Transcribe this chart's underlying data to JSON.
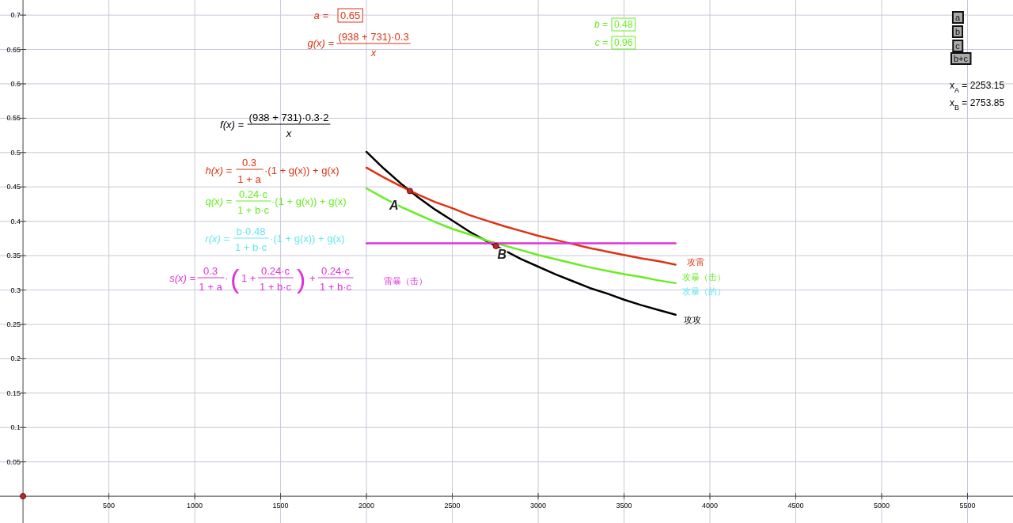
{
  "chart_data": {
    "type": "line",
    "xlim": [
      -134,
      5765
    ],
    "ylim": [
      -0.039,
      0.722
    ],
    "xticks": [
      500,
      1000,
      1500,
      2000,
      2500,
      3000,
      3500,
      4000,
      4500,
      5000,
      5500
    ],
    "yticks": [
      0.05,
      0.1,
      0.15,
      0.2,
      0.25,
      0.3,
      0.35,
      0.4,
      0.45,
      0.5,
      0.55,
      0.6,
      0.65,
      0.7
    ],
    "grid": true,
    "series": [
      {
        "name": "攻攻",
        "color": "#000000",
        "x": [
          2000,
          2100,
          2200,
          2300,
          2400,
          2500,
          2600,
          2700,
          2800,
          2900,
          3000,
          3100,
          3200,
          3300,
          3400,
          3500,
          3600,
          3700,
          3800
        ],
        "values": [
          0.501,
          0.477,
          0.455,
          0.435,
          0.417,
          0.401,
          0.385,
          0.371,
          0.358,
          0.345,
          0.334,
          0.323,
          0.313,
          0.303,
          0.295,
          0.286,
          0.278,
          0.271,
          0.264
        ]
      },
      {
        "name": "攻雷",
        "color": "#dd3311",
        "x": [
          2000,
          2100,
          2200,
          2300,
          2400,
          2500,
          2600,
          2700,
          2800,
          2900,
          3000,
          3100,
          3200,
          3300,
          3400,
          3500,
          3600,
          3700,
          3800
        ],
        "values": [
          0.478,
          0.464,
          0.451,
          0.439,
          0.428,
          0.419,
          0.409,
          0.401,
          0.393,
          0.386,
          0.379,
          0.373,
          0.367,
          0.361,
          0.356,
          0.351,
          0.346,
          0.342,
          0.337
        ]
      },
      {
        "name": "攻暴（击）",
        "color": "#66ee22",
        "x": [
          2000,
          2100,
          2200,
          2300,
          2400,
          2500,
          2600,
          2700,
          2800,
          2900,
          3000,
          3100,
          3200,
          3300,
          3400,
          3500,
          3600,
          3700,
          3800
        ],
        "values": [
          0.448,
          0.434,
          0.421,
          0.41,
          0.399,
          0.389,
          0.381,
          0.372,
          0.365,
          0.358,
          0.351,
          0.345,
          0.339,
          0.333,
          0.328,
          0.323,
          0.319,
          0.314,
          0.31
        ]
      },
      {
        "name": "攻暴（的）",
        "color": "#66e8f0"
      },
      {
        "name": "雷暴（击）",
        "color": "#dd33dd",
        "x": [
          2000,
          3800
        ],
        "values": [
          0.368,
          0.368
        ]
      },
      {
        "type": "scatter",
        "color": "#cc2222",
        "x": [
          0,
          2253.15,
          2753.85
        ],
        "values": [
          0,
          0.444,
          0.364
        ]
      }
    ],
    "annotations": [
      "a =",
      "0.65",
      "g(x) =",
      "(938 + 731)·0.3",
      "x",
      "b =",
      "0.48",
      "c =",
      "0.96",
      "a",
      "b",
      "c",
      "b+c",
      "x$_{A}$ = 2253.15",
      "x$_{B}$ = 2753.85",
      "f(x) =",
      "(938 + 731)·0.3·2",
      "x",
      "h(x) =",
      "0.3",
      "1 + a",
      "·(1 + g(x)) + g(x)",
      "q(x) =",
      "0.24·c",
      "1 + b·c",
      "·(1 + g(x)) + g(x)",
      "r(x) =",
      "b·0.48",
      "1 + b·c",
      "·(1 + g(x)) + g(x)",
      "s(x) =",
      "0.3",
      "1 + a",
      "·",
      "(",
      "1 +",
      "0.24·c",
      "1 + b·c",
      ")",
      "+",
      "0.24·c",
      "1 + b·c",
      {
        "text": "A",
        "x": 2253.15,
        "y": 0.444
      },
      {
        "text": "B",
        "x": 2753.85,
        "y": 0.364
      }
    ]
  }
}
